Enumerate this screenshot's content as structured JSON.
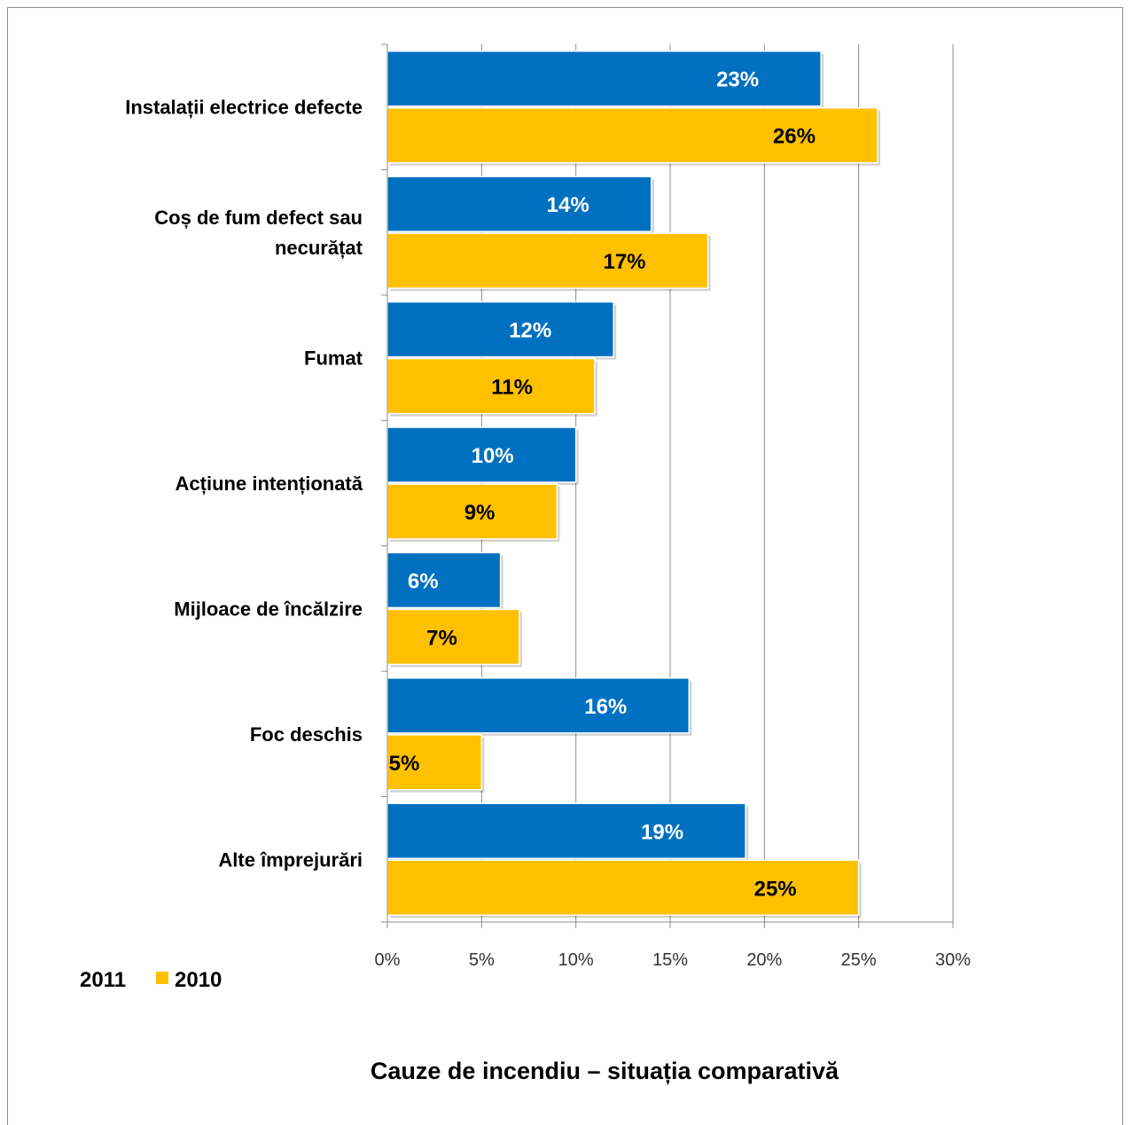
{
  "chart_data": {
    "type": "bar",
    "orientation": "horizontal",
    "title": "Cauze de incendiu – situația comparativă",
    "categories": [
      [
        "Instalații electrice defecte"
      ],
      [
        "Coș de fum defect sau",
        "necurățat"
      ],
      [
        "Fumat"
      ],
      [
        "Acțiune intenționată"
      ],
      [
        "Mijloace de încălzire"
      ],
      [
        "Foc deschis"
      ],
      [
        "Alte împrejurări"
      ]
    ],
    "series": [
      {
        "name": "2011",
        "color": "#0070C0",
        "label_color": "#ffffff",
        "values": [
          23,
          14,
          12,
          10,
          6,
          16,
          19
        ],
        "labels": [
          "23%",
          "14%",
          "12%",
          "10%",
          "6%",
          "16%",
          "19%"
        ]
      },
      {
        "name": "2010",
        "color": "#FFC000",
        "label_color": "#000000",
        "values": [
          26,
          17,
          11,
          9,
          7,
          5,
          25
        ],
        "labels": [
          "26%",
          "17%",
          "11%",
          "9%",
          "7%",
          "5%",
          "25%"
        ]
      }
    ],
    "xlim": [
      0,
      30
    ],
    "x_ticks": [
      "0%",
      "5%",
      "10%",
      "15%",
      "20%",
      "25%",
      "30%"
    ],
    "grid": true,
    "legend_position": "bottom-left"
  }
}
